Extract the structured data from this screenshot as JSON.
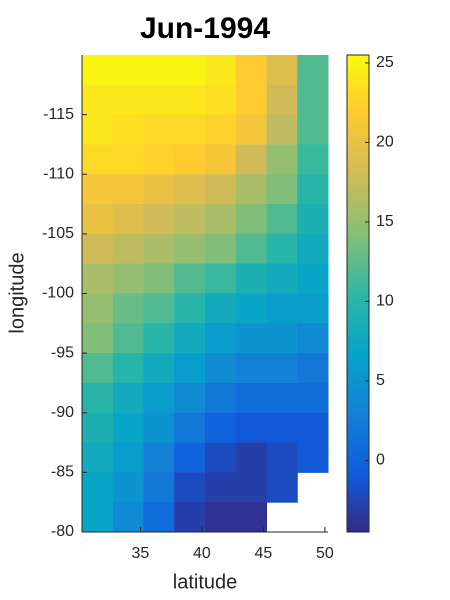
{
  "chart_data": {
    "type": "heatmap",
    "title": "Jun-1994",
    "x_label": "latitude",
    "y_label": "longitude",
    "x": [
      31.5,
      34,
      36.5,
      39,
      41.5,
      44,
      46.5,
      49
    ],
    "y": [
      -118.75,
      -116.25,
      -113.75,
      -111.25,
      -108.75,
      -106.25,
      -103.75,
      -101.25,
      -98.75,
      -96.25,
      -93.75,
      -91.25,
      -88.75,
      -86.25,
      -83.75,
      -81.25
    ],
    "values": [
      [
        25,
        25,
        25,
        25,
        24,
        22,
        19,
        12
      ],
      [
        24,
        24,
        24,
        24,
        23.5,
        22,
        18,
        12
      ],
      [
        24,
        23.5,
        23,
        23,
        22.5,
        21,
        17,
        12
      ],
      [
        23,
        23,
        22.5,
        22,
        21,
        18,
        15,
        11
      ],
      [
        21,
        21,
        20,
        19,
        18,
        16,
        14,
        10
      ],
      [
        20,
        19,
        18,
        17,
        16,
        14,
        12,
        9
      ],
      [
        18,
        17,
        16,
        15,
        14,
        12,
        10,
        8
      ],
      [
        16,
        15,
        14,
        12,
        11,
        9,
        8,
        7
      ],
      [
        15,
        13,
        12,
        10,
        8,
        7,
        6,
        6
      ],
      [
        14,
        12,
        10,
        8,
        6,
        5,
        5,
        4
      ],
      [
        12,
        10,
        8,
        6,
        4,
        3,
        3,
        2
      ],
      [
        10,
        8,
        6,
        4,
        2,
        1,
        1,
        1
      ],
      [
        9,
        7,
        5,
        2,
        0,
        -1,
        -1,
        -1
      ],
      [
        8,
        6,
        3,
        0,
        -2,
        -3,
        -2,
        -1
      ],
      [
        7,
        5,
        2,
        -2,
        -3,
        -3,
        -2,
        null
      ],
      [
        7,
        4,
        1,
        -3,
        -4,
        -4,
        null,
        null
      ]
    ],
    "xlim": [
      30.25,
      50.25
    ],
    "ylim": [
      -120,
      -80
    ],
    "y_reversed": true,
    "xticks": [
      35,
      40,
      45,
      50
    ],
    "yticks": [
      -115,
      -110,
      -105,
      -100,
      -95,
      -90,
      -85,
      -80
    ],
    "clim": [
      -4.5,
      25.5
    ],
    "cticks": [
      0,
      5,
      10,
      15,
      20,
      25
    ],
    "colormap": [
      "#352a87",
      "#0f5cdd",
      "#1481d6",
      "#06a4ca",
      "#2eb7a4",
      "#87bf77",
      "#d1bb59",
      "#fec832",
      "#f9fb0e"
    ]
  }
}
